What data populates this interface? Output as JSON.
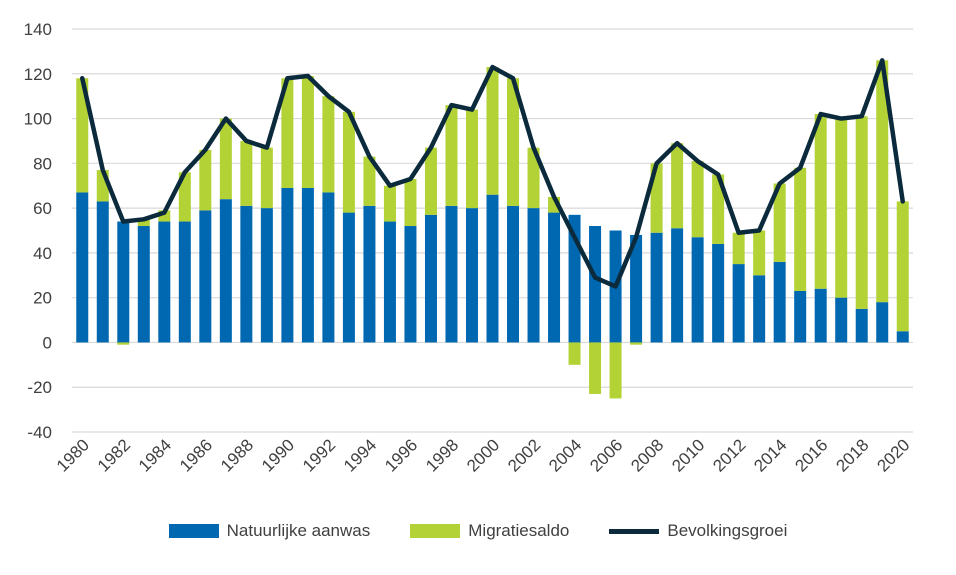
{
  "chart_data": {
    "type": "bar",
    "stacked": true,
    "title": "",
    "xlabel": "",
    "ylabel": "",
    "ylim": [
      -40,
      140
    ],
    "yticks": [
      -40,
      -20,
      0,
      20,
      40,
      60,
      80,
      100,
      120,
      140
    ],
    "grid": true,
    "legend_placement": "bottom",
    "x": [
      1980,
      1981,
      1982,
      1983,
      1984,
      1985,
      1986,
      1987,
      1988,
      1989,
      1990,
      1991,
      1992,
      1993,
      1994,
      1995,
      1996,
      1997,
      1998,
      1999,
      2000,
      2001,
      2002,
      2003,
      2004,
      2005,
      2006,
      2007,
      2008,
      2009,
      2010,
      2011,
      2012,
      2013,
      2014,
      2015,
      2016,
      2017,
      2018,
      2019,
      2020
    ],
    "xtick_labels": [
      "1980",
      "1982",
      "1984",
      "1986",
      "1988",
      "1990",
      "1992",
      "1994",
      "1996",
      "1998",
      "2000",
      "2002",
      "2004",
      "2006",
      "2008",
      "2010",
      "2012",
      "2014",
      "2016",
      "2018",
      "2020"
    ],
    "series": [
      {
        "name": "Natuurlijke aanwas",
        "kind": "bar",
        "color": "#0068B1",
        "values": [
          67,
          63,
          54,
          52,
          54,
          54,
          59,
          64,
          61,
          60,
          69,
          69,
          67,
          58,
          61,
          54,
          52,
          57,
          61,
          60,
          66,
          61,
          60,
          58,
          57,
          52,
          50,
          48,
          49,
          51,
          47,
          44,
          35,
          30,
          36,
          23,
          24,
          20,
          15,
          18,
          5
        ]
      },
      {
        "name": "Migratiesaldo",
        "kind": "bar",
        "color": "#B2D235",
        "values": [
          51,
          14,
          -1,
          3,
          5,
          22,
          27,
          36,
          29,
          27,
          49,
          50,
          43,
          45,
          22,
          16,
          21,
          30,
          45,
          44,
          57,
          57,
          27,
          7,
          -10,
          -23,
          -25,
          -1,
          31,
          38,
          34,
          31,
          14,
          20,
          35,
          55,
          78,
          80,
          86,
          108,
          58
        ]
      },
      {
        "name": "Bevolkingsgroei",
        "kind": "line",
        "color": "#0B2A3C",
        "values": [
          118,
          77,
          54,
          55,
          58,
          76,
          86,
          100,
          90,
          87,
          118,
          119,
          110,
          103,
          83,
          70,
          73,
          87,
          106,
          104,
          123,
          118,
          87,
          65,
          47,
          29,
          25,
          47,
          80,
          89,
          81,
          75,
          49,
          50,
          71,
          78,
          102,
          100,
          101,
          126,
          63
        ]
      }
    ]
  }
}
